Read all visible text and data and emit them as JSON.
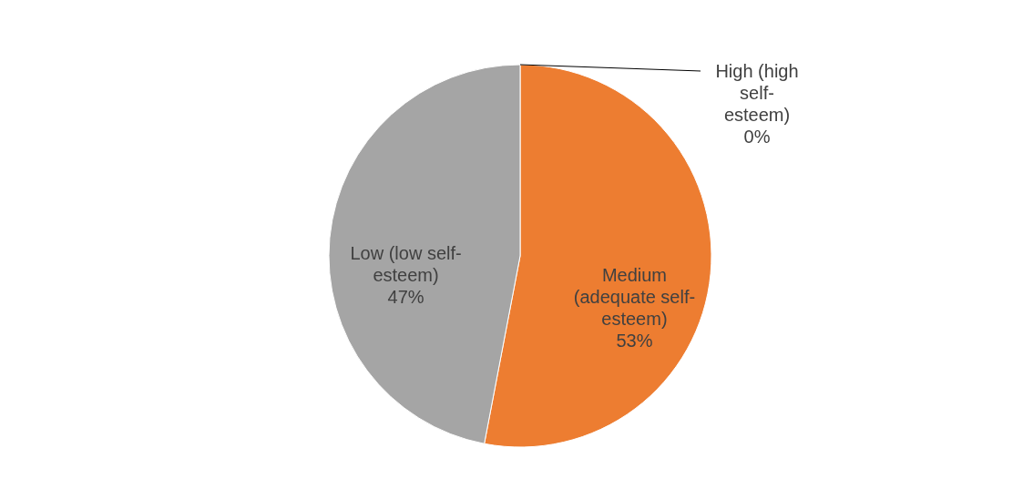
{
  "chart_data": {
    "type": "pie",
    "categories": [
      "High (high self-esteem)",
      "Medium (adequate self-esteem)",
      "Low (low self-esteem)"
    ],
    "values": [
      0,
      53,
      47
    ],
    "colors": [
      "#4472c4",
      "#ed7d31",
      "#a5a5a5"
    ],
    "value_labels": [
      "0%",
      "53%",
      "47%"
    ]
  }
}
